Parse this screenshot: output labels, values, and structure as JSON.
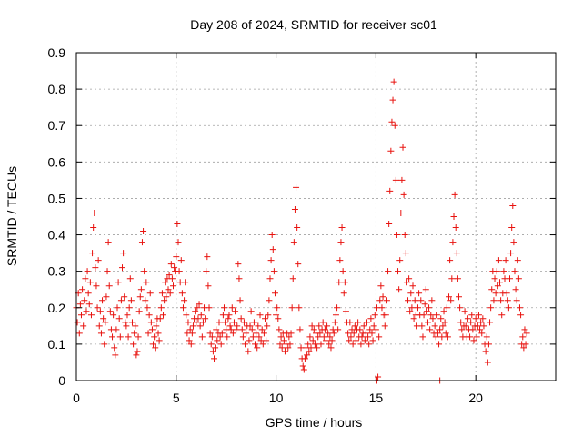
{
  "chart_data": {
    "type": "scatter",
    "title": "Day 208 of 2024, SRMTID for receiver sc01",
    "xlabel": "GPS time / hours",
    "ylabel": "SRMTID / TECUs",
    "xlim": [
      0,
      24
    ],
    "ylim": [
      0,
      0.9
    ],
    "xticks": [
      0,
      5,
      10,
      15,
      20
    ],
    "xtick_labels": [
      "0",
      "5",
      "10",
      "15",
      "20"
    ],
    "yticks": [
      0,
      0.1,
      0.2,
      0.3,
      0.4,
      0.5,
      0.6,
      0.7,
      0.8,
      0.9
    ],
    "ytick_labels": [
      "0",
      "0.1",
      "0.2",
      "0.3",
      "0.4",
      "0.5",
      "0.6",
      "0.7",
      "0.8",
      "0.9"
    ],
    "grid": true,
    "marker": "+",
    "color": "#e8130f",
    "series": [
      {
        "name": "sc01",
        "x_start": 0.0,
        "x_step": 0.05,
        "values": [
          0.2,
          0.16,
          0.24,
          0.13,
          0.21,
          0.18,
          0.25,
          0.15,
          0.22,
          0.28,
          0.19,
          0.3,
          0.24,
          0.21,
          0.27,
          0.18,
          0.35,
          0.42,
          0.46,
          0.31,
          0.26,
          0.2,
          0.33,
          0.15,
          0.19,
          0.13,
          0.22,
          0.17,
          0.1,
          0.16,
          0.23,
          0.3,
          0.38,
          0.26,
          0.19,
          0.14,
          0.12,
          0.18,
          0.09,
          0.07,
          0.14,
          0.2,
          0.27,
          0.17,
          0.12,
          0.22,
          0.31,
          0.35,
          0.23,
          0.16,
          0.15,
          0.18,
          0.12,
          0.2,
          0.28,
          0.22,
          0.16,
          0.1,
          0.13,
          0.15,
          0.07,
          0.08,
          0.12,
          0.19,
          0.23,
          0.25,
          0.38,
          0.41,
          0.3,
          0.22,
          0.27,
          0.2,
          0.13,
          0.18,
          0.24,
          0.16,
          0.14,
          0.1,
          0.12,
          0.09,
          0.15,
          0.17,
          0.13,
          0.11,
          0.17,
          0.2,
          0.24,
          0.18,
          0.22,
          0.27,
          0.23,
          0.28,
          0.25,
          0.29,
          0.24,
          0.32,
          0.28,
          0.26,
          0.31,
          0.3,
          0.34,
          0.43,
          0.38,
          0.3,
          0.27,
          0.33,
          0.24,
          0.2,
          0.22,
          0.27,
          0.18,
          0.13,
          0.16,
          0.11,
          0.14,
          0.1,
          0.13,
          0.15,
          0.17,
          0.19,
          0.16,
          0.2,
          0.17,
          0.21,
          0.15,
          0.18,
          0.12,
          0.16,
          0.2,
          0.17,
          0.3,
          0.34,
          0.26,
          0.2,
          0.13,
          0.1,
          0.12,
          0.08,
          0.06,
          0.09,
          0.14,
          0.11,
          0.13,
          0.16,
          0.12,
          0.1,
          0.13,
          0.18,
          0.2,
          0.16,
          0.14,
          0.12,
          0.17,
          0.18,
          0.15,
          0.14,
          0.2,
          0.13,
          0.16,
          0.19,
          0.14,
          0.15,
          0.32,
          0.28,
          0.22,
          0.17,
          0.14,
          0.12,
          0.16,
          0.1,
          0.13,
          0.15,
          0.08,
          0.11,
          0.15,
          0.19,
          0.14,
          0.12,
          0.16,
          0.1,
          0.13,
          0.09,
          0.15,
          0.12,
          0.18,
          0.11,
          0.14,
          0.1,
          0.13,
          0.17,
          0.11,
          0.15,
          0.18,
          0.22,
          0.28,
          0.33,
          0.4,
          0.36,
          0.3,
          0.24,
          0.18,
          0.2,
          0.17,
          0.14,
          0.1,
          0.12,
          0.09,
          0.13,
          0.11,
          0.08,
          0.1,
          0.13,
          0.09,
          0.12,
          0.1,
          0.13,
          0.2,
          0.28,
          0.38,
          0.47,
          0.53,
          0.42,
          0.32,
          0.2,
          0.14,
          0.09,
          0.06,
          0.04,
          0.03,
          0.06,
          0.09,
          0.07,
          0.1,
          0.08,
          0.12,
          0.09,
          0.15,
          0.11,
          0.14,
          0.1,
          0.13,
          0.09,
          0.12,
          0.15,
          0.13,
          0.1,
          0.14,
          0.16,
          0.12,
          0.14,
          0.11,
          0.15,
          0.13,
          0.1,
          0.12,
          0.09,
          0.11,
          0.14,
          0.13,
          0.16,
          0.18,
          0.2,
          0.14,
          0.27,
          0.33,
          0.38,
          0.42,
          0.3,
          0.24,
          0.27,
          0.19,
          0.16,
          0.13,
          0.11,
          0.16,
          0.12,
          0.14,
          0.1,
          0.13,
          0.15,
          0.11,
          0.14,
          0.16,
          0.12,
          0.14,
          0.1,
          0.12,
          0.13,
          0.15,
          0.11,
          0.13,
          0.16,
          0.12,
          0.1,
          0.14,
          0.17,
          0.13,
          0.11,
          0.15,
          0.18,
          0.14,
          0.2,
          0.01,
          0.12,
          0.22,
          0.26,
          0.2,
          0.23,
          0.18,
          0.15,
          0.18,
          0.22,
          0.3,
          0.43,
          0.52,
          0.63,
          0.71,
          0.77,
          0.82,
          0.7,
          0.55,
          0.4,
          0.3,
          0.25,
          0.33,
          0.46,
          0.55,
          0.64,
          0.51,
          0.4,
          0.35,
          0.27,
          0.22,
          0.28,
          0.19,
          0.24,
          0.2,
          0.26,
          0.17,
          0.22,
          0.18,
          0.15,
          0.2,
          0.24,
          0.18,
          0.22,
          0.15,
          0.12,
          0.18,
          0.21,
          0.25,
          0.19,
          0.16,
          0.2,
          0.14,
          0.18,
          0.22,
          0.17,
          0.13,
          0.15,
          0.12,
          0.18,
          0.13,
          0.1,
          0.14,
          0.17,
          0.12,
          0.15,
          0.19,
          0.16,
          0.13,
          0.2,
          0.12,
          0.23,
          0.33,
          0.22,
          0.28,
          0.38,
          0.45,
          0.51,
          0.42,
          0.35,
          0.28,
          0.23,
          0.2,
          0.16,
          0.14,
          0.12,
          0.15,
          0.19,
          0.15,
          0.12,
          0.17,
          0.14,
          0.12,
          0.16,
          0.18,
          0.14,
          0.11,
          0.15,
          0.17,
          0.12,
          0.15,
          0.18,
          0.14,
          0.16,
          0.13,
          0.17,
          0.15,
          0.1,
          0.08,
          0.12,
          0.05,
          0.1,
          0.16,
          0.2,
          0.25,
          0.3,
          0.22,
          0.28,
          0.24,
          0.3,
          0.26,
          0.33,
          0.27,
          0.22,
          0.18,
          0.24,
          0.3,
          0.28,
          0.33,
          0.24,
          0.22,
          0.2,
          0.28,
          0.35,
          0.42,
          0.48,
          0.38,
          0.3,
          0.25,
          0.22,
          0.33,
          0.28,
          0.2,
          0.18,
          0.1,
          0.12,
          0.09,
          0.14,
          0.1,
          0.13
        ]
      }
    ],
    "outliers": [
      {
        "x": 18.2,
        "y": 0.0
      },
      {
        "x": 15.05,
        "y": 0.0
      }
    ]
  }
}
